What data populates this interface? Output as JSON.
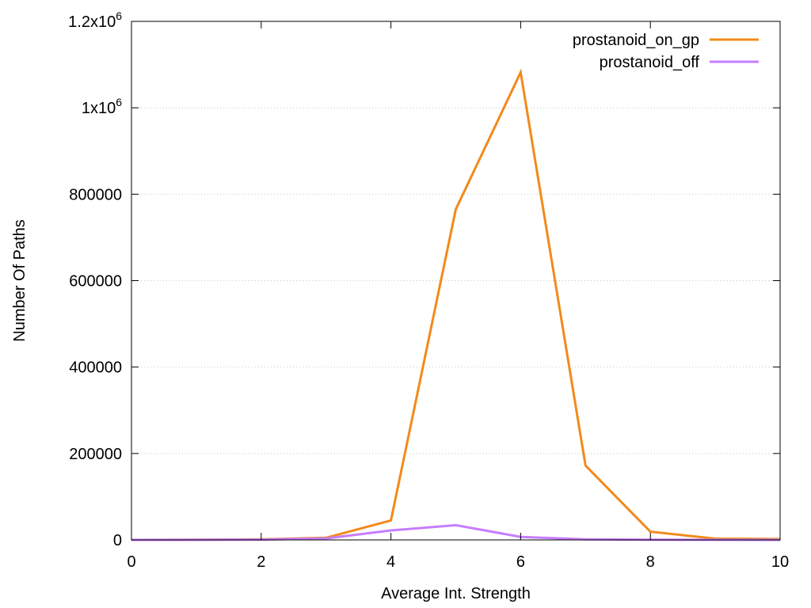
{
  "chart_data": {
    "type": "line",
    "title": "",
    "xlabel": "Average Int. Strength",
    "ylabel": "Number Of Paths",
    "xlim": [
      0,
      10
    ],
    "ylim": [
      0,
      1200000
    ],
    "x_ticks": [
      {
        "value": 0,
        "label": "0"
      },
      {
        "value": 2,
        "label": "2"
      },
      {
        "value": 4,
        "label": "4"
      },
      {
        "value": 6,
        "label": "6"
      },
      {
        "value": 8,
        "label": "8"
      },
      {
        "value": 10,
        "label": "10"
      }
    ],
    "y_ticks": [
      {
        "value": 0,
        "label": "0",
        "mantissa": "0",
        "exponent": ""
      },
      {
        "value": 200000,
        "label": "200000",
        "mantissa": "200000",
        "exponent": ""
      },
      {
        "value": 400000,
        "label": "400000",
        "mantissa": "400000",
        "exponent": ""
      },
      {
        "value": 600000,
        "label": "600000",
        "mantissa": "600000",
        "exponent": ""
      },
      {
        "value": 800000,
        "label": "800000",
        "mantissa": "800000",
        "exponent": ""
      },
      {
        "value": 1000000,
        "label": "1x10^6",
        "mantissa": "1x10",
        "exponent": "6"
      },
      {
        "value": 1200000,
        "label": "1.2x10^6",
        "mantissa": "1.2x10",
        "exponent": "6"
      }
    ],
    "grid": true,
    "legend_position": "top-right",
    "series": [
      {
        "name": "prostanoid_on_gp",
        "color": "#f28a1a",
        "x": [
          0,
          1,
          2,
          3,
          4,
          5,
          6,
          7,
          8,
          9,
          10
        ],
        "values": [
          0,
          300,
          1500,
          5000,
          45000,
          765000,
          1082000,
          172000,
          19000,
          3000,
          2000
        ]
      },
      {
        "name": "prostanoid_off",
        "color": "#c77dff",
        "x": [
          0,
          1,
          2,
          3,
          4,
          5,
          6,
          7,
          8,
          9,
          10
        ],
        "values": [
          0,
          200,
          800,
          3500,
          22000,
          34000,
          7000,
          1500,
          300,
          100,
          50
        ]
      }
    ]
  }
}
